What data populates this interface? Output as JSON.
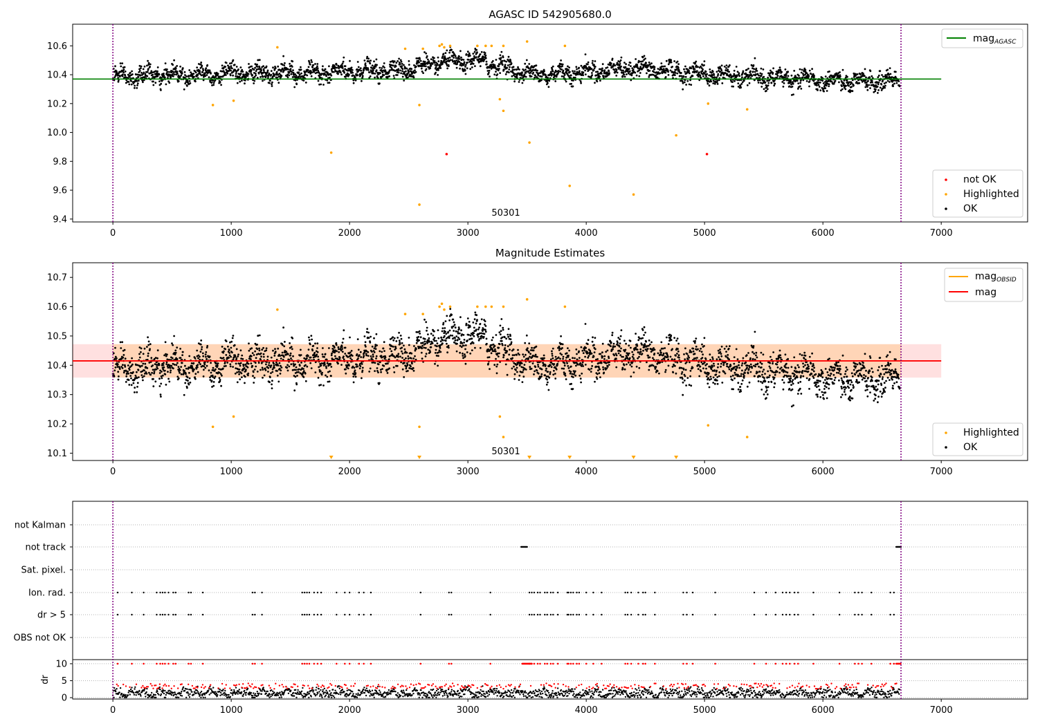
{
  "chart_data": [
    {
      "type": "scatter",
      "title": "AGASC ID 542905680.0",
      "xlim": [
        -340,
        7730
      ],
      "ylim": [
        9.38,
        10.75
      ],
      "xticks": [
        0,
        1000,
        2000,
        3000,
        4000,
        5000,
        6000,
        7000
      ],
      "yticks": [
        9.4,
        9.6,
        9.8,
        10.0,
        10.2,
        10.4,
        10.6
      ],
      "ytick_labels": [
        "9.4",
        "9.6",
        "9.8",
        "10.0",
        "10.2",
        "10.4",
        "10.6"
      ],
      "annotation": "50301",
      "mag_agasc": 10.37,
      "legend_top": [
        {
          "label": "mag",
          "sub": "AGASC",
          "color": "#008000"
        }
      ],
      "legend_bottom": [
        {
          "label": "not OK",
          "color": "#ff0000"
        },
        {
          "label": "Highlighted",
          "color": "#ffa500"
        },
        {
          "label": "OK",
          "color": "#000000"
        }
      ],
      "not_ok_points": [
        [
          2820,
          9.85
        ],
        [
          5020,
          9.85
        ]
      ],
      "highlighted_points": [
        [
          845,
          10.19
        ],
        [
          1020,
          10.22
        ],
        [
          1390,
          10.59
        ],
        [
          1845,
          9.86
        ],
        [
          2470,
          10.58
        ],
        [
          2590,
          10.19
        ],
        [
          2590,
          9.5
        ],
        [
          2620,
          10.58
        ],
        [
          2760,
          10.6
        ],
        [
          2780,
          10.61
        ],
        [
          2800,
          10.59
        ],
        [
          2850,
          10.6
        ],
        [
          3080,
          10.6
        ],
        [
          3150,
          10.6
        ],
        [
          3200,
          10.6
        ],
        [
          3270,
          10.23
        ],
        [
          3300,
          10.6
        ],
        [
          3300,
          10.15
        ],
        [
          3500,
          10.63
        ],
        [
          3520,
          9.93
        ],
        [
          3820,
          10.6
        ],
        [
          3860,
          9.63
        ],
        [
          4400,
          9.57
        ],
        [
          4760,
          9.98
        ],
        [
          5030,
          10.2
        ],
        [
          5360,
          10.16
        ]
      ],
      "ok_band_profile": [
        [
          0,
          10.38
        ],
        [
          500,
          10.4
        ],
        [
          1000,
          10.41
        ],
        [
          1500,
          10.41
        ],
        [
          2000,
          10.42
        ],
        [
          2500,
          10.44
        ],
        [
          2800,
          10.49
        ],
        [
          3100,
          10.5
        ],
        [
          3400,
          10.43
        ],
        [
          3600,
          10.4
        ],
        [
          4000,
          10.42
        ],
        [
          4400,
          10.45
        ],
        [
          4800,
          10.42
        ],
        [
          5200,
          10.39
        ],
        [
          5800,
          10.37
        ],
        [
          6200,
          10.35
        ],
        [
          6650,
          10.36
        ]
      ],
      "vlines": [
        0,
        6660
      ]
    },
    {
      "type": "scatter",
      "title": "Magnitude Estimates",
      "xlim": [
        -340,
        7730
      ],
      "ylim": [
        10.075,
        10.75
      ],
      "xticks": [
        0,
        1000,
        2000,
        3000,
        4000,
        5000,
        6000,
        7000
      ],
      "yticks": [
        10.1,
        10.2,
        10.3,
        10.4,
        10.5,
        10.6,
        10.7
      ],
      "ytick_labels": [
        "10.1",
        "10.2",
        "10.3",
        "10.4",
        "10.5",
        "10.6",
        "10.7"
      ],
      "annotation": "50301",
      "mag": 10.415,
      "mag_band": [
        10.358,
        10.472
      ],
      "legend_top": [
        {
          "label": "mag",
          "sub": "OBSID",
          "color": "#ffa500"
        },
        {
          "label": "mag",
          "sub": "",
          "color": "#ff0000"
        }
      ],
      "legend_bottom": [
        {
          "label": "Highlighted",
          "color": "#ffa500"
        },
        {
          "label": "OK",
          "color": "#000000"
        }
      ],
      "highlighted_points": [
        [
          845,
          10.19
        ],
        [
          1020,
          10.225
        ],
        [
          1390,
          10.59
        ],
        [
          2470,
          10.575
        ],
        [
          2590,
          10.19
        ],
        [
          2620,
          10.575
        ],
        [
          2760,
          10.6
        ],
        [
          2780,
          10.61
        ],
        [
          2800,
          10.59
        ],
        [
          2850,
          10.6
        ],
        [
          3080,
          10.6
        ],
        [
          3150,
          10.6
        ],
        [
          3200,
          10.6
        ],
        [
          3270,
          10.225
        ],
        [
          3300,
          10.6
        ],
        [
          3300,
          10.155
        ],
        [
          3500,
          10.625
        ],
        [
          3820,
          10.6
        ],
        [
          5030,
          10.195
        ],
        [
          5360,
          10.155
        ]
      ],
      "offscale_markers_x": [
        1845,
        2590,
        3520,
        3860,
        4400,
        4760
      ],
      "vlines": [
        0,
        6660
      ]
    },
    {
      "type": "scatter",
      "title": "",
      "xlim": [
        -340,
        7730
      ],
      "xticks": [
        0,
        1000,
        2000,
        3000,
        4000,
        5000,
        6000,
        7000
      ],
      "flag_rows": [
        "not Kalman",
        "not track",
        "Sat. pixel.",
        "Ion. rad.",
        "dr > 5",
        "OBS not OK"
      ],
      "not_track_x": [
        [
          3450,
          3500
        ],
        [
          6620,
          6660
        ]
      ],
      "ion_rad_x": [
        40,
        160,
        260,
        370,
        400,
        420,
        440,
        470,
        510,
        530,
        640,
        660,
        760,
        1180,
        1200,
        1260,
        1600,
        1620,
        1640,
        1660,
        1700,
        1730,
        1760,
        1890,
        1960,
        2000,
        2080,
        2120,
        2180,
        2600,
        2840,
        2860,
        3190,
        3520,
        3540,
        3560,
        3590,
        3610,
        3650,
        3670,
        3700,
        3720,
        3760,
        3840,
        3850,
        3870,
        3890,
        3920,
        3940,
        4000,
        4060,
        4130,
        4330,
        4350,
        4380,
        4440,
        4480,
        4500,
        4580,
        4820,
        4850,
        4900,
        5090,
        5420,
        5520,
        5600,
        5660,
        5690,
        5720,
        5760,
        5790,
        5920,
        6140,
        6270,
        6300,
        6330,
        6410,
        6570,
        6600
      ],
      "dr_ylabel": "dr",
      "dr_yticks": [
        0,
        5,
        10
      ],
      "vlines": [
        0,
        6660
      ]
    }
  ]
}
